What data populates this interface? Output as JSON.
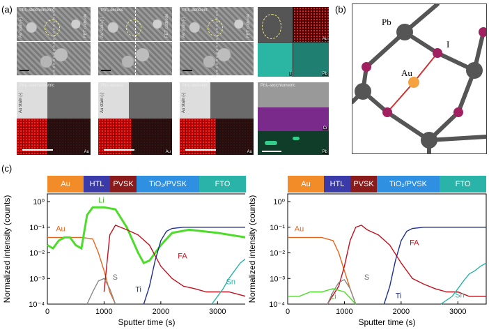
{
  "panel_labels": {
    "a": "(a)",
    "b": "(b)",
    "c": "(c)"
  },
  "panel_a": {
    "row1": [
      {
        "title": "PbI₂-stoichiometric",
        "left_tag": "Au stain (-)",
        "right_tag": "FET cathode"
      },
      {
        "title": "PbI₂-excess",
        "left_tag": "Au stain (-)",
        "right_tag": "FET cathode"
      },
      {
        "title": "PbI₂-deficient",
        "left_tag": "Au stain (-)",
        "right_tag": "FET cathode"
      }
    ],
    "row2": [
      {
        "title": "PbI₂-stoichiometric",
        "left_tag": "Au stain (-)",
        "map_el": "Au"
      },
      {
        "title": "PbI₂-excess",
        "left_tag": "Au stain (-)",
        "map_el": "Au"
      },
      {
        "title": "PbI₂-deficient",
        "left_tag": "Au stain (-)",
        "map_el": "Au"
      }
    ],
    "edx_top": {
      "els": [
        "Au",
        "I",
        "Pb"
      ]
    },
    "edx_bottom": {
      "title": "PbI₂-stoichiometric",
      "left_tag": "Cr source (-)",
      "els": [
        "Cr",
        "Pb"
      ]
    }
  },
  "panel_b": {
    "labels": {
      "pb": "Pb",
      "i": "I",
      "au": "Au"
    }
  },
  "panel_c": {
    "layers": [
      {
        "label": "Au",
        "color": "#f28c28",
        "text": "#fff"
      },
      {
        "label": "HTL",
        "color": "#3a3aa8",
        "text": "#fff"
      },
      {
        "label": "PVSK",
        "color": "#8b1a1a",
        "text": "#fff"
      },
      {
        "label": "TiO₂/PVSK",
        "color": "#2f8fe0",
        "text": "#fff"
      },
      {
        "label": "FTO",
        "color": "#2ab3a8",
        "text": "#fff"
      }
    ],
    "ylabel": "Normalized intensity (counts)",
    "xlabel": "Sputter time (s)",
    "xticks": [
      "0",
      "1000",
      "2000",
      "3000"
    ],
    "yticks": [
      "10⁰",
      "10⁻¹",
      "10⁻²",
      "10⁻³",
      "10⁻⁴"
    ],
    "left_labels": {
      "li": "Li",
      "au": "Au",
      "s": "S",
      "ti": "Ti",
      "fa": "FA",
      "sn": "Sn"
    },
    "right_labels": {
      "au": "Au",
      "s": "S",
      "ti": "Ti",
      "fa": "FA",
      "sn": "Sn",
      "li": "Li"
    }
  },
  "chart_data": [
    {
      "type": "line",
      "title": "",
      "xlabel": "Sputter time (s)",
      "ylabel": "Normalized intensity (counts)",
      "xlim": [
        0,
        3500
      ],
      "ylim": [
        0.0001,
        2
      ],
      "yscale": "log",
      "series": [
        {
          "name": "Au",
          "color": "#e8641b",
          "x": [
            0,
            200,
            400,
            600,
            800,
            900,
            1000,
            1100,
            1200
          ],
          "y": [
            0.04,
            0.04,
            0.04,
            0.04,
            0.035,
            0.01,
            0.002,
            0.0003,
            0.0001
          ]
        },
        {
          "name": "Li",
          "color": "#4ddc2a",
          "x": [
            0,
            100,
            200,
            300,
            400,
            500,
            600,
            700,
            800,
            1000,
            1200,
            1400,
            1600,
            1700,
            1800,
            2000,
            2200,
            2500,
            3000,
            3500
          ],
          "y": [
            0.02,
            0.015,
            0.03,
            0.04,
            0.04,
            0.02,
            0.015,
            0.3,
            0.6,
            0.6,
            0.5,
            0.1,
            0.01,
            0.004,
            0.005,
            0.02,
            0.06,
            0.08,
            0.06,
            0.04
          ]
        },
        {
          "name": "FA",
          "color": "#c1121f",
          "x": [
            1000,
            1100,
            1200,
            1400,
            1600,
            1800,
            2000,
            2200,
            2400,
            2600,
            2800,
            3000,
            3200,
            3500
          ],
          "y": [
            0.0003,
            0.05,
            0.12,
            0.08,
            0.05,
            0.02,
            0.003,
            0.001,
            0.0005,
            0.0004,
            0.0003,
            0.0003,
            0.0003,
            0.0002
          ]
        },
        {
          "name": "S",
          "color": "#8a8a8a",
          "x": [
            700,
            800,
            900,
            1000,
            1100,
            1200
          ],
          "y": [
            0.0001,
            0.0003,
            0.0008,
            0.001,
            0.0004,
            0.0001
          ]
        },
        {
          "name": "Ti",
          "color": "#1f2f8f",
          "x": [
            1700,
            1800,
            1900,
            2000,
            2100,
            2200,
            2400,
            2600,
            3000,
            3500
          ],
          "y": [
            0.0001,
            0.0005,
            0.005,
            0.03,
            0.07,
            0.09,
            0.1,
            0.1,
            0.1,
            0.1
          ]
        },
        {
          "name": "Sn",
          "color": "#2ab3a8",
          "x": [
            2900,
            3000,
            3100,
            3200,
            3300,
            3400,
            3500
          ],
          "y": [
            0.0001,
            0.0002,
            0.0004,
            0.001,
            0.002,
            0.004,
            0.006
          ]
        }
      ]
    },
    {
      "type": "line",
      "title": "",
      "xlabel": "Sputter time (s)",
      "ylabel": "Normalized intensity (counts)",
      "xlim": [
        0,
        3500
      ],
      "ylim": [
        0.0001,
        2
      ],
      "yscale": "log",
      "series": [
        {
          "name": "Au",
          "color": "#e8641b",
          "x": [
            0,
            200,
            400,
            600,
            800,
            900,
            1000,
            1100,
            1200
          ],
          "y": [
            0.04,
            0.04,
            0.04,
            0.04,
            0.03,
            0.01,
            0.002,
            0.0004,
            0.0001
          ]
        },
        {
          "name": "FA",
          "color": "#c1121f",
          "x": [
            700,
            900,
            1000,
            1100,
            1200,
            1300,
            1400,
            1600,
            1800,
            2000,
            2200,
            2400,
            2600,
            2800,
            3000,
            3200,
            3500
          ],
          "y": [
            0.0001,
            0.0005,
            0.003,
            0.03,
            0.1,
            0.12,
            0.08,
            0.05,
            0.02,
            0.004,
            0.001,
            0.0006,
            0.0004,
            0.0003,
            0.0003,
            0.0002,
            0.0002
          ]
        },
        {
          "name": "S",
          "color": "#8a8a8a",
          "x": [
            700,
            800,
            900,
            1000,
            1100,
            1200
          ],
          "y": [
            0.0001,
            0.0003,
            0.0007,
            0.0009,
            0.0004,
            0.0001
          ]
        },
        {
          "name": "Li",
          "color": "#4ddc2a",
          "x": [
            0,
            200,
            400,
            600,
            800,
            1000,
            1200
          ],
          "y": [
            0.0002,
            0.0002,
            0.0003,
            0.0003,
            0.0004,
            0.0003,
            0.0001
          ]
        },
        {
          "name": "Ti",
          "color": "#1f2f8f",
          "x": [
            1700,
            1800,
            1900,
            2000,
            2100,
            2200,
            2400,
            2600,
            3000,
            3500
          ],
          "y": [
            0.0001,
            0.0005,
            0.005,
            0.03,
            0.07,
            0.09,
            0.1,
            0.1,
            0.1,
            0.1
          ]
        },
        {
          "name": "Sn",
          "color": "#2ab3a8",
          "x": [
            2700,
            2900,
            3000,
            3100,
            3200,
            3300,
            3400,
            3500
          ],
          "y": [
            0.0001,
            0.0002,
            0.0004,
            0.0008,
            0.0015,
            0.002,
            0.003,
            0.004
          ]
        }
      ]
    }
  ]
}
